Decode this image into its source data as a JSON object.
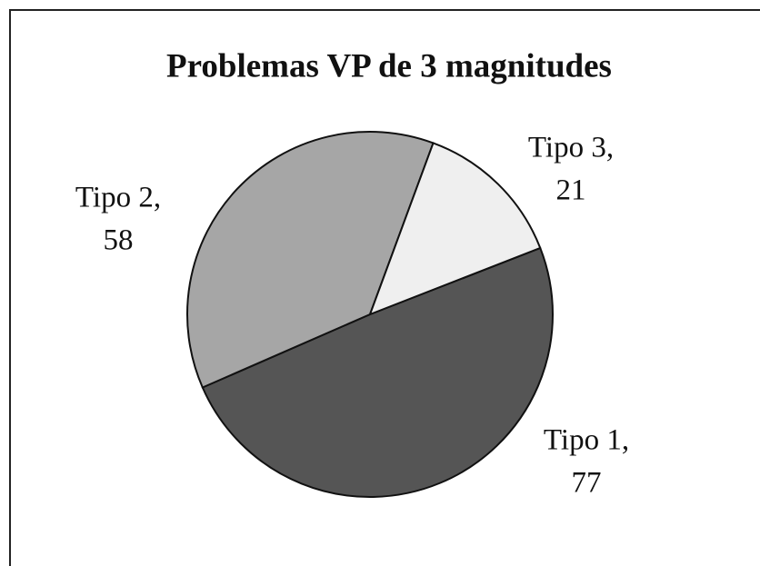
{
  "chart_data": {
    "type": "pie",
    "title": "Problemas VP de 3 magnitudes",
    "categories": [
      "Tipo 1,",
      "Tipo 2,",
      "Tipo 3,"
    ],
    "values": [
      77,
      58,
      21
    ],
    "colors": [
      "#555555",
      "#a6a6a6",
      "#efefef"
    ]
  }
}
